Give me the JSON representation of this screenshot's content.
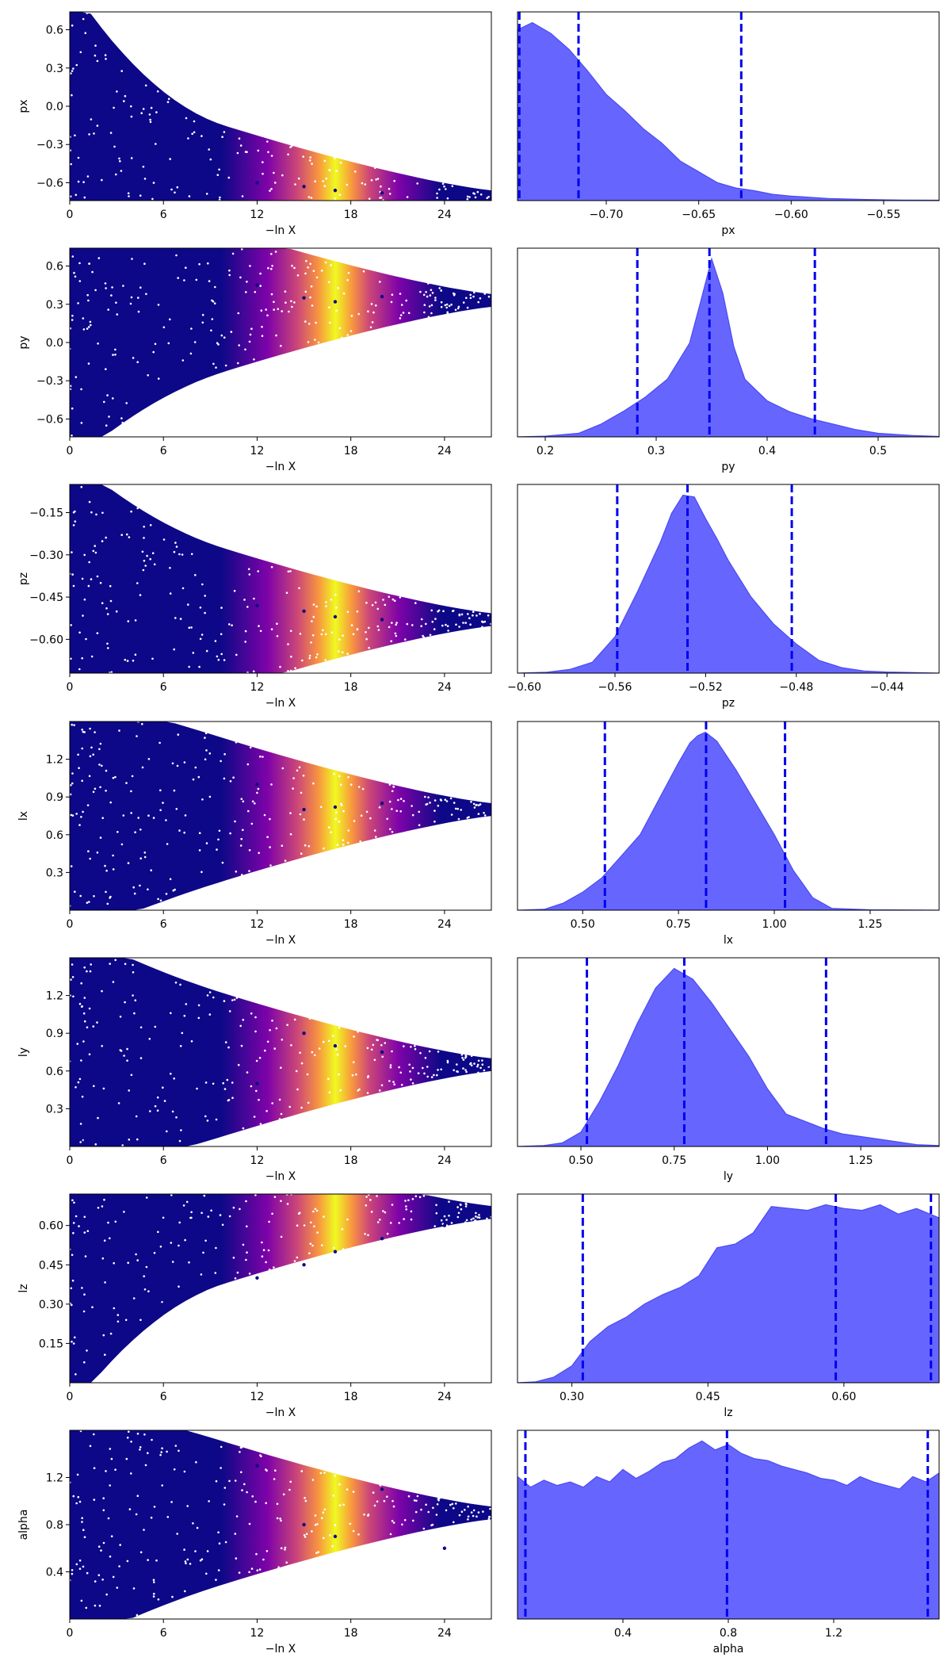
{
  "chart_data": [
    {
      "type": "scatter",
      "param": "px",
      "xlabel": "−ln X",
      "ylabel": "px",
      "xlim": [
        0,
        27
      ],
      "ylim": [
        -0.74,
        0.74
      ],
      "xticks": [
        "0",
        "6",
        "12",
        "18",
        "24"
      ],
      "yticks": [
        "0.6",
        "0.3",
        "0.0",
        "−0.3",
        "−0.6"
      ],
      "points": [
        {
          "x": 0.5,
          "y": 0.6
        },
        {
          "x": 1.5,
          "y": 0.1
        },
        {
          "x": 3,
          "y": -0.35
        },
        {
          "x": 6,
          "y": -0.48
        },
        {
          "x": 9,
          "y": -0.55
        },
        {
          "x": 12,
          "y": -0.6
        },
        {
          "x": 15,
          "y": -0.63
        },
        {
          "x": 17,
          "y": -0.66
        },
        {
          "x": 20,
          "y": -0.68
        },
        {
          "x": 24,
          "y": -0.7
        },
        {
          "x": 26.5,
          "y": -0.71
        }
      ]
    },
    {
      "type": "area",
      "param": "px",
      "xlabel": "px",
      "xlim": [
        -0.748,
        -0.52
      ],
      "xticks": [
        "−0.70",
        "−0.65",
        "−0.60",
        "−0.55"
      ],
      "x": [
        -0.748,
        -0.74,
        -0.73,
        -0.72,
        -0.71,
        -0.7,
        -0.69,
        -0.68,
        -0.67,
        -0.66,
        -0.65,
        -0.64,
        -0.63,
        -0.62,
        -0.61,
        -0.6,
        -0.58,
        -0.56,
        -0.54,
        -0.52
      ],
      "density": [
        0.95,
        0.99,
        0.93,
        0.84,
        0.72,
        0.59,
        0.5,
        0.4,
        0.32,
        0.22,
        0.16,
        0.1,
        0.07,
        0.055,
        0.035,
        0.025,
        0.012,
        0.006,
        0.003,
        0.002
      ],
      "quantiles": [
        -0.747,
        -0.715,
        -0.627
      ]
    },
    {
      "type": "scatter",
      "param": "py",
      "xlabel": "−ln X",
      "ylabel": "py",
      "xlim": [
        0,
        27
      ],
      "ylim": [
        -0.74,
        0.74
      ],
      "xticks": [
        "0",
        "6",
        "12",
        "18",
        "24"
      ],
      "yticks": [
        "0.6",
        "0.3",
        "0.0",
        "−0.3",
        "−0.6"
      ],
      "points": [
        {
          "x": 0.5,
          "y": 0.2
        },
        {
          "x": 1.5,
          "y": -0.3
        },
        {
          "x": 3,
          "y": 0.55
        },
        {
          "x": 6,
          "y": 0.5
        },
        {
          "x": 9,
          "y": 0.2
        },
        {
          "x": 12,
          "y": 0.45
        },
        {
          "x": 15,
          "y": 0.35
        },
        {
          "x": 17,
          "y": 0.32
        },
        {
          "x": 20,
          "y": 0.36
        },
        {
          "x": 24,
          "y": 0.34
        },
        {
          "x": 26.8,
          "y": 0.33
        }
      ]
    },
    {
      "type": "area",
      "param": "py",
      "xlabel": "py",
      "xlim": [
        0.175,
        0.555
      ],
      "xticks": [
        "0.2",
        "0.3",
        "0.4",
        "0.5"
      ],
      "x": [
        0.175,
        0.2,
        0.23,
        0.25,
        0.27,
        0.29,
        0.31,
        0.33,
        0.34,
        0.35,
        0.36,
        0.37,
        0.38,
        0.4,
        0.42,
        0.44,
        0.46,
        0.48,
        0.5,
        0.53,
        0.555
      ],
      "density": [
        0.0,
        0.004,
        0.02,
        0.07,
        0.14,
        0.22,
        0.32,
        0.52,
        0.75,
        0.99,
        0.8,
        0.5,
        0.32,
        0.2,
        0.14,
        0.1,
        0.07,
        0.04,
        0.02,
        0.008,
        0.002
      ],
      "quantiles": [
        0.283,
        0.348,
        0.443
      ]
    },
    {
      "type": "scatter",
      "param": "pz",
      "xlabel": "−ln X",
      "ylabel": "pz",
      "xlim": [
        0,
        27
      ],
      "ylim": [
        -0.72,
        -0.05
      ],
      "xticks": [
        "0",
        "6",
        "12",
        "18",
        "24"
      ],
      "yticks": [
        "−0.15",
        "−0.30",
        "−0.45",
        "−0.60"
      ],
      "points": [
        {
          "x": 0.5,
          "y": -0.1
        },
        {
          "x": 2,
          "y": -0.7
        },
        {
          "x": 3,
          "y": -0.3
        },
        {
          "x": 6,
          "y": -0.4
        },
        {
          "x": 9,
          "y": -0.55
        },
        {
          "x": 12,
          "y": -0.48
        },
        {
          "x": 15,
          "y": -0.5
        },
        {
          "x": 17,
          "y": -0.52
        },
        {
          "x": 20,
          "y": -0.53
        },
        {
          "x": 24,
          "y": -0.52
        },
        {
          "x": 26.8,
          "y": -0.53
        }
      ]
    },
    {
      "type": "area",
      "param": "pz",
      "xlabel": "pz",
      "xlim": [
        -0.603,
        -0.417
      ],
      "xticks": [
        "−0.60",
        "−0.56",
        "−0.52",
        "−0.48",
        "−0.44"
      ],
      "x": [
        -0.603,
        -0.59,
        -0.58,
        -0.57,
        -0.56,
        -0.55,
        -0.54,
        -0.535,
        -0.53,
        -0.525,
        -0.52,
        -0.515,
        -0.51,
        -0.5,
        -0.49,
        -0.48,
        -0.47,
        -0.46,
        -0.45,
        -0.44,
        -0.417
      ],
      "density": [
        0.0,
        0.005,
        0.02,
        0.06,
        0.2,
        0.45,
        0.72,
        0.88,
        0.98,
        0.97,
        0.85,
        0.74,
        0.62,
        0.42,
        0.27,
        0.16,
        0.07,
        0.03,
        0.012,
        0.006,
        0.0
      ],
      "quantiles": [
        -0.559,
        -0.528,
        -0.482
      ]
    },
    {
      "type": "scatter",
      "param": "lx",
      "xlabel": "−ln X",
      "ylabel": "lx",
      "xlim": [
        0,
        27
      ],
      "ylim": [
        0.0,
        1.5
      ],
      "xticks": [
        "0",
        "6",
        "12",
        "18",
        "24"
      ],
      "yticks": [
        "1.2",
        "0.9",
        "0.6",
        "0.3"
      ],
      "points": [
        {
          "x": 1,
          "y": 0.1
        },
        {
          "x": 3,
          "y": 1.3
        },
        {
          "x": 6,
          "y": 0.8
        },
        {
          "x": 9,
          "y": 0.4
        },
        {
          "x": 12,
          "y": 1.0
        },
        {
          "x": 15,
          "y": 0.8
        },
        {
          "x": 17,
          "y": 0.82
        },
        {
          "x": 20,
          "y": 0.85
        },
        {
          "x": 24,
          "y": 0.84
        },
        {
          "x": 26.8,
          "y": 0.8
        }
      ]
    },
    {
      "type": "area",
      "param": "lx",
      "xlabel": "lx",
      "xlim": [
        0.33,
        1.43
      ],
      "xticks": [
        "0.50",
        "0.75",
        "1.00",
        "1.25"
      ],
      "x": [
        0.33,
        0.4,
        0.45,
        0.5,
        0.55,
        0.6,
        0.65,
        0.7,
        0.75,
        0.78,
        0.8,
        0.82,
        0.85,
        0.9,
        0.95,
        1.0,
        1.05,
        1.1,
        1.15,
        1.25,
        1.43
      ],
      "density": [
        0.0,
        0.005,
        0.04,
        0.1,
        0.18,
        0.3,
        0.42,
        0.62,
        0.82,
        0.93,
        0.97,
        0.99,
        0.94,
        0.78,
        0.6,
        0.42,
        0.22,
        0.07,
        0.01,
        0.002,
        0.0
      ],
      "quantiles": [
        0.558,
        0.822,
        1.028
      ]
    },
    {
      "type": "scatter",
      "param": "ly",
      "xlabel": "−ln X",
      "ylabel": "ly",
      "xlim": [
        0,
        27
      ],
      "ylim": [
        0.0,
        1.5
      ],
      "xticks": [
        "0",
        "6",
        "12",
        "18",
        "24"
      ],
      "yticks": [
        "1.2",
        "0.9",
        "0.6",
        "0.3"
      ],
      "points": [
        {
          "x": 1,
          "y": 0.05
        },
        {
          "x": 3,
          "y": 1.4
        },
        {
          "x": 6,
          "y": 0.7
        },
        {
          "x": 9,
          "y": 1.1
        },
        {
          "x": 12,
          "y": 0.5
        },
        {
          "x": 15,
          "y": 0.9
        },
        {
          "x": 17,
          "y": 0.8
        },
        {
          "x": 20,
          "y": 0.75
        },
        {
          "x": 24,
          "y": 0.72
        },
        {
          "x": 26.8,
          "y": 0.65
        }
      ]
    },
    {
      "type": "area",
      "param": "ly",
      "xlabel": "ly",
      "xlim": [
        0.33,
        1.46
      ],
      "xticks": [
        "0.50",
        "0.75",
        "1.00",
        "1.25"
      ],
      "x": [
        0.33,
        0.4,
        0.45,
        0.5,
        0.55,
        0.6,
        0.65,
        0.7,
        0.75,
        0.8,
        0.85,
        0.9,
        0.95,
        1.0,
        1.05,
        1.1,
        1.15,
        1.2,
        1.3,
        1.4,
        1.46
      ],
      "density": [
        0.0,
        0.005,
        0.02,
        0.08,
        0.25,
        0.45,
        0.68,
        0.88,
        0.99,
        0.93,
        0.8,
        0.65,
        0.5,
        0.32,
        0.18,
        0.14,
        0.1,
        0.07,
        0.04,
        0.01,
        0.005
      ],
      "quantiles": [
        0.516,
        0.777,
        1.157
      ]
    },
    {
      "type": "scatter",
      "param": "lz",
      "xlabel": "−ln X",
      "ylabel": "lz",
      "xlim": [
        0,
        27
      ],
      "ylim": [
        0.0,
        0.72
      ],
      "xticks": [
        "0",
        "6",
        "12",
        "18",
        "24"
      ],
      "yticks": [
        "0.60",
        "0.45",
        "0.30",
        "0.15"
      ],
      "points": [
        {
          "x": 1,
          "y": 0.05
        },
        {
          "x": 3,
          "y": 0.65
        },
        {
          "x": 6,
          "y": 0.3
        },
        {
          "x": 9,
          "y": 0.55
        },
        {
          "x": 12,
          "y": 0.4
        },
        {
          "x": 15,
          "y": 0.45
        },
        {
          "x": 17,
          "y": 0.5
        },
        {
          "x": 20,
          "y": 0.55
        },
        {
          "x": 24,
          "y": 0.6
        },
        {
          "x": 26.8,
          "y": 0.65
        }
      ]
    },
    {
      "type": "area",
      "param": "lz",
      "xlabel": "lz",
      "xlim": [
        0.24,
        0.705
      ],
      "xticks": [
        "0.30",
        "0.45",
        "0.60"
      ],
      "x": [
        0.24,
        0.26,
        0.28,
        0.3,
        0.32,
        0.34,
        0.36,
        0.38,
        0.4,
        0.42,
        0.44,
        0.46,
        0.48,
        0.5,
        0.52,
        0.54,
        0.56,
        0.58,
        0.6,
        0.62,
        0.64,
        0.66,
        0.68,
        0.705
      ],
      "density": [
        0.0,
        0.005,
        0.03,
        0.09,
        0.22,
        0.3,
        0.35,
        0.42,
        0.47,
        0.51,
        0.57,
        0.72,
        0.74,
        0.8,
        0.94,
        0.93,
        0.92,
        0.95,
        0.93,
        0.92,
        0.95,
        0.9,
        0.93,
        0.88
      ],
      "quantiles": [
        0.312,
        0.591,
        0.696
      ]
    },
    {
      "type": "scatter",
      "param": "alpha",
      "xlabel": "−ln X",
      "ylabel": "alpha",
      "xlim": [
        0,
        27
      ],
      "ylim": [
        0.0,
        1.6
      ],
      "xticks": [
        "0",
        "6",
        "12",
        "18",
        "24"
      ],
      "yticks": [
        "1.2",
        "0.8",
        "0.4"
      ],
      "points": [
        {
          "x": 1,
          "y": 1.5
        },
        {
          "x": 3,
          "y": 0.2
        },
        {
          "x": 6,
          "y": 0.9
        },
        {
          "x": 9,
          "y": 0.5
        },
        {
          "x": 12,
          "y": 1.3
        },
        {
          "x": 15,
          "y": 0.8
        },
        {
          "x": 17,
          "y": 0.7
        },
        {
          "x": 20,
          "y": 1.1
        },
        {
          "x": 24,
          "y": 0.6
        },
        {
          "x": 26.8,
          "y": 0.9
        }
      ]
    },
    {
      "type": "area",
      "param": "alpha",
      "xlabel": "alpha",
      "xlim": [
        0.0,
        1.6
      ],
      "xticks": [
        "0.4",
        "0.8",
        "1.2"
      ],
      "x": [
        0.0,
        0.05,
        0.1,
        0.15,
        0.2,
        0.25,
        0.3,
        0.35,
        0.4,
        0.45,
        0.5,
        0.55,
        0.6,
        0.65,
        0.7,
        0.75,
        0.8,
        0.85,
        0.9,
        0.95,
        1.0,
        1.05,
        1.1,
        1.15,
        1.2,
        1.25,
        1.3,
        1.35,
        1.4,
        1.45,
        1.5,
        1.55,
        1.6
      ],
      "density": [
        0.8,
        0.74,
        0.78,
        0.75,
        0.77,
        0.74,
        0.8,
        0.77,
        0.84,
        0.79,
        0.83,
        0.88,
        0.9,
        0.96,
        1.0,
        0.95,
        0.98,
        0.93,
        0.9,
        0.89,
        0.86,
        0.84,
        0.82,
        0.79,
        0.78,
        0.75,
        0.8,
        0.77,
        0.75,
        0.73,
        0.8,
        0.77,
        0.82
      ],
      "quantiles": [
        0.03,
        0.795,
        1.557
      ]
    }
  ]
}
